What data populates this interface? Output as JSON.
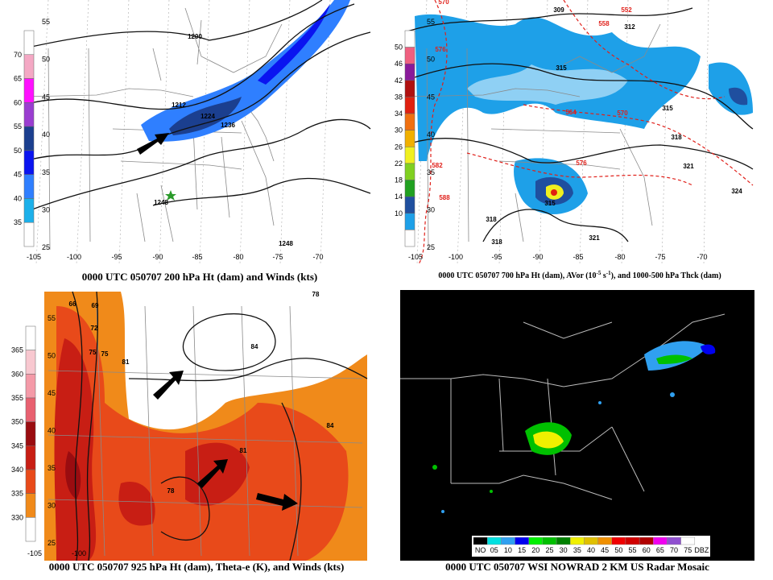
{
  "panels": [
    {
      "caption": "0000 UTC 050707 200 hPa Ht (dam) and Winds (kts)",
      "colorbar": {
        "labels": [
          "70",
          "65",
          "60",
          "55",
          "50",
          "45",
          "40",
          "35"
        ],
        "colors": [
          "#ffffff",
          "#f4a8c4",
          "#ff10ff",
          "#9a3dd0",
          "#1b3f8f",
          "#0a14f0",
          "#2f7fff",
          "#1cb0ea",
          "#ffffff"
        ]
      },
      "lat_labels": [
        "55",
        "50",
        "45",
        "40",
        "35",
        "30",
        "25"
      ],
      "lon_labels": [
        "-105",
        "-100",
        "-95",
        "-90",
        "-85",
        "-80",
        "-75",
        "-70"
      ],
      "contour_labels": [
        "1200",
        "1212",
        "1224",
        "1236",
        "1248",
        "1248"
      ]
    },
    {
      "caption": [
        "0000 UTC 050707 700 hPa Ht (dam), AVor (10",
        "-5",
        " s",
        "-1",
        "), and 1000-500 hPa Thck (dam)"
      ],
      "colorbar": {
        "labels": [
          "50",
          "46",
          "42",
          "38",
          "34",
          "30",
          "26",
          "22",
          "18",
          "14",
          "10"
        ],
        "colors": [
          "#ffffff",
          "#f06080",
          "#8a1a9a",
          "#b01010",
          "#e02010",
          "#f07010",
          "#f0b000",
          "#f0f020",
          "#80d020",
          "#20a020",
          "#1f4f9f",
          "#1ea0e8",
          "#ffffff"
        ]
      },
      "lat_labels": [
        "55",
        "50",
        "45",
        "40",
        "35",
        "30",
        "25"
      ],
      "lon_labels": [
        "-105",
        "-100",
        "-95",
        "-90",
        "-85",
        "-80",
        "-75",
        "-70"
      ],
      "contour_labels": [
        "570",
        "552",
        "558",
        "576",
        "309",
        "312",
        "315",
        "564",
        "570",
        "315",
        "318",
        "582",
        "576",
        "321",
        "588",
        "324",
        "315",
        "318",
        "318",
        "321"
      ]
    },
    {
      "caption": "0000 UTC 050707 925 hPa Ht (dam), Theta-e (K), and Winds (kts)",
      "colorbar": {
        "labels": [
          "365",
          "360",
          "355",
          "350",
          "345",
          "340",
          "335",
          "330"
        ],
        "colors": [
          "#ffffff",
          "#f8c8d0",
          "#f49aa8",
          "#e86070",
          "#9a0c10",
          "#c81e14",
          "#e84a1a",
          "#f08a1a",
          "#ffffff"
        ]
      },
      "lat_labels": [
        "55",
        "50",
        "45",
        "40",
        "35",
        "30",
        "25"
      ],
      "lon_labels": [
        "-105",
        "-100"
      ],
      "contour_labels": [
        "66",
        "69",
        "72",
        "75",
        "75",
        "78",
        "84",
        "81",
        "84",
        "81",
        "78"
      ]
    },
    {
      "caption": "0000 UTC 050707 WSI NOWRAD 2 KM US Radar Mosaic",
      "colorbar": {
        "labels": [
          "NO",
          "05",
          "10",
          "15",
          "20",
          "25",
          "30",
          "35",
          "40",
          "45",
          "50",
          "55",
          "60",
          "65",
          "70",
          "75",
          "DBZ"
        ],
        "colors": [
          "#000000",
          "#00e0e0",
          "#30a0f0",
          "#0000f0",
          "#00f000",
          "#00c000",
          "#008000",
          "#f0f000",
          "#e0c000",
          "#f09000",
          "#f00000",
          "#d00000",
          "#b00000",
          "#f000f0",
          "#9050d0",
          "#ffffff"
        ]
      }
    }
  ]
}
